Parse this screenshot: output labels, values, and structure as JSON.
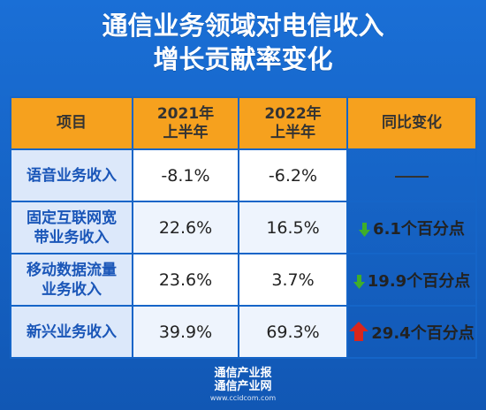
{
  "title_line1": "通信业务领域对电信收入",
  "title_line2": "增长贡献率变化",
  "header": {
    "item": "项目",
    "h2021_l1": "2021年",
    "h2021_l2": "上半年",
    "h2022_l1": "2022年",
    "h2022_l2": "上半年",
    "change": "同比变化"
  },
  "rows": [
    {
      "label_l1": "语音业务收入",
      "label_l2": "",
      "v2021": "-8.1%",
      "v2022": "-6.2%",
      "change": "——",
      "direction": "none"
    },
    {
      "label_l1": "固定互联网宽",
      "label_l2": "带业务收入",
      "v2021": "22.6%",
      "v2022": "16.5%",
      "change": "6.1个百分点",
      "direction": "down"
    },
    {
      "label_l1": "移动数据流量",
      "label_l2": "业务收入",
      "v2021": "23.6%",
      "v2022": "3.7%",
      "change": "19.9个百分点",
      "direction": "down"
    },
    {
      "label_l1": "新兴业务收入",
      "label_l2": "",
      "v2021": "39.9%",
      "v2022": "69.3%",
      "change": "29.4个百分点",
      "direction": "up"
    }
  ],
  "colors": {
    "background": "#1565c8",
    "header": "#f6a11e",
    "label_text": "#1a56b8",
    "down_arrow": "#3fae2a",
    "up_arrow": "#d9261c"
  },
  "footer": {
    "line1": "通信产业报",
    "line2": "通信产业网",
    "line3": "www.ccidcom.com"
  },
  "chart_data": {
    "type": "table",
    "columns": [
      "项目",
      "2021年上半年",
      "2022年上半年",
      "同比变化"
    ],
    "rows": [
      [
        "语音业务收入",
        -8.1,
        -6.2,
        null
      ],
      [
        "固定互联网宽带业务收入",
        22.6,
        16.5,
        -6.1
      ],
      [
        "移动数据流量业务收入",
        23.6,
        3.7,
        -19.9
      ],
      [
        "新兴业务收入",
        39.9,
        69.3,
        29.4
      ]
    ],
    "unit": "%"
  }
}
